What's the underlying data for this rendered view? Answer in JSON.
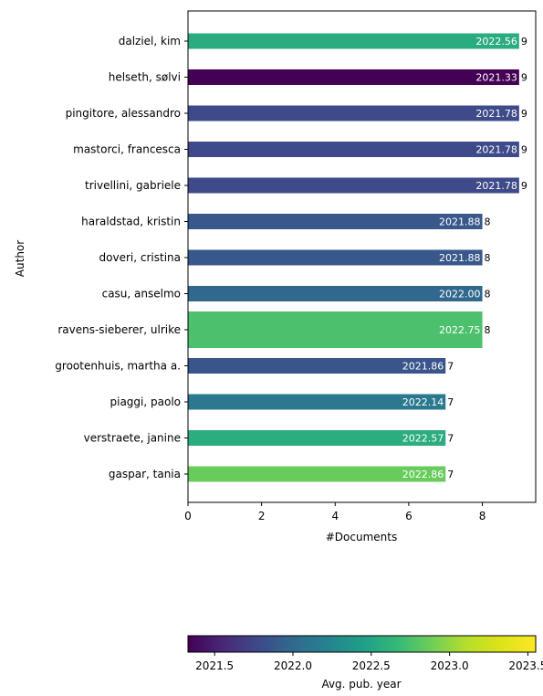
{
  "chart_data": {
    "type": "bar",
    "orientation": "horizontal",
    "xlabel": "#Documents",
    "ylabel": "Author",
    "xlim": [
      0,
      9.45
    ],
    "xticks": [
      0,
      2,
      4,
      6,
      8
    ],
    "grid": false,
    "categories": [
      "dalziel, kim",
      "helseth, sølvi",
      "pingitore, alessandro",
      "mastorci, francesca",
      "trivellini, gabriele",
      "haraldstad, kristin",
      "doveri, cristina",
      "casu, anselmo",
      "ravens-sieberer, ulrike",
      "grootenhuis, martha a.",
      "piaggi, paolo",
      "verstraete, janine",
      "gaspar, tania"
    ],
    "values": [
      9,
      9,
      9,
      9,
      9,
      8,
      8,
      8,
      8,
      7,
      7,
      7,
      7
    ],
    "bar_labels": [
      "2022.56",
      "2021.33",
      "2021.78",
      "2021.78",
      "2021.78",
      "2021.88",
      "2021.88",
      "2022.00",
      "2022.75",
      "2021.86",
      "2022.14",
      "2022.57",
      "2022.86"
    ],
    "value_labels": [
      "9",
      "9",
      "9",
      "9",
      "9",
      "8",
      "8",
      "8",
      "8",
      "7",
      "7",
      "7",
      "7"
    ],
    "avg_pub_year": [
      2022.56,
      2021.33,
      2021.78,
      2021.78,
      2021.78,
      2021.88,
      2021.88,
      2022.0,
      2022.75,
      2021.86,
      2022.14,
      2022.57,
      2022.86
    ],
    "colorbar": {
      "label": "Avg. pub. year",
      "colormap": "viridis",
      "range": [
        2021.33,
        2023.55
      ],
      "ticks": [
        2021.5,
        2022.0,
        2022.5,
        2023.0,
        2023.5
      ],
      "tick_labels": [
        "2021.5",
        "2022.0",
        "2022.5",
        "2023.0",
        "2023.5"
      ]
    }
  }
}
